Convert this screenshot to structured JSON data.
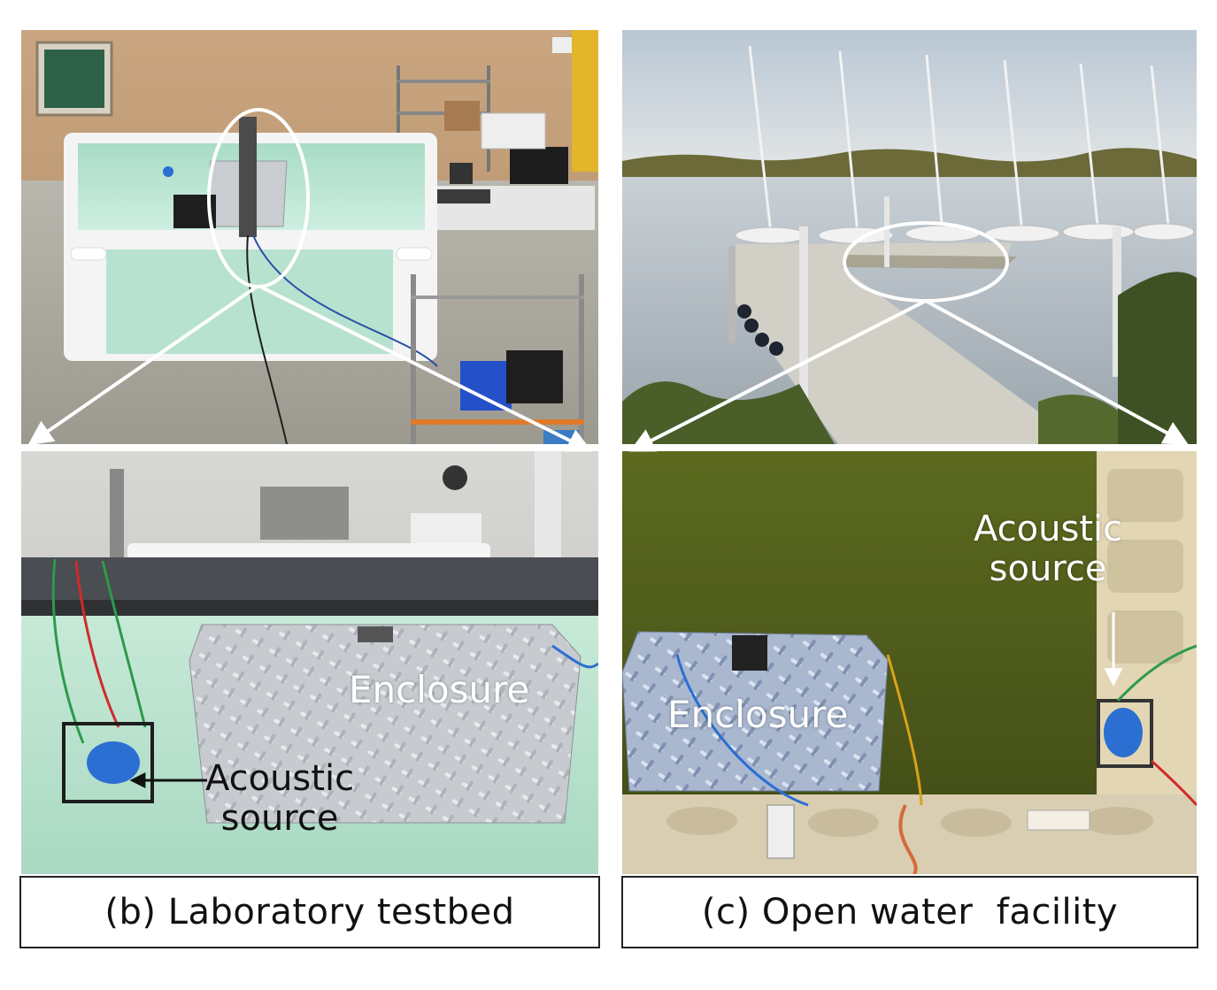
{
  "figure": {
    "lab_caption": "(b) Laboratory testbed",
    "open_caption": "(c) Open water  facility",
    "lab_labels": {
      "enclosure": "Enclosure",
      "acoustic_line1": "Acoustic",
      "acoustic_line2": "source"
    },
    "open_labels": {
      "enclosure": "Enclosure",
      "acoustic_line1": "Acoustic",
      "acoustic_line2": "source"
    },
    "colors": {
      "tank_water": "#bfe6d6",
      "lake_water": "#4d5a1d",
      "sky": "#c9d3db",
      "aluminum": "#c8ccd2",
      "accent_blue": "#2a6fd1"
    }
  }
}
